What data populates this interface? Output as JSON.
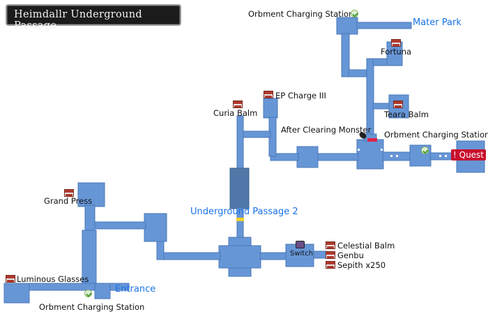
{
  "title": "Heimdallr Underground Passage",
  "areas": {
    "mater_park": "Mater Park",
    "underground_passage_2": "Underground Passage 2",
    "entrance": "Entrance"
  },
  "labels": {
    "orbment_top": "Orbment Charging Station",
    "orbment_right": "Orbment Charging Station",
    "orbment_bottom": "Orbment Charging Station",
    "fortuna": "Fortuna",
    "ep_charge": "EP Charge III",
    "curia_balm": "Curia Balm",
    "teara_balm": "Teara Balm",
    "after_clearing": "After Clearing Monster",
    "grand_press": "Grand Press",
    "celestial_balm": "Celestial Balm",
    "genbu": "Genbu",
    "sepith": "Sepith x250",
    "switch": "Switch",
    "luminous_glasses": "Luminous Glasses",
    "quest": "! Quest"
  },
  "colors": {
    "corridor": "#6796d6",
    "corridor_dark": "#4f77a8",
    "gate_yellow": "#f3d02a",
    "gate_red": "#e0234a",
    "quest_red": "#c8102e",
    "area_blue": "#1a73e8"
  }
}
